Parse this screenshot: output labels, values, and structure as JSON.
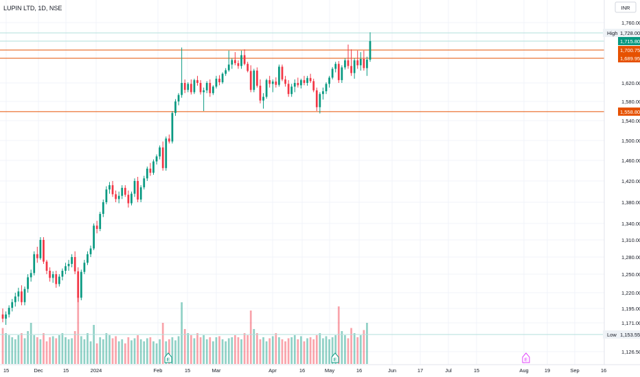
{
  "header": {
    "title": "LUPIN LTD, 1D, NSE"
  },
  "currency_button": {
    "label": "INR"
  },
  "chart_data": {
    "type": "candlestick",
    "title": "LUPIN LTD, 1D, NSE",
    "currency": "INR",
    "y_axis": {
      "ticks": [
        "1,760.00",
        "1,620.00",
        "1,580.00",
        "1,540.00",
        "1,500.00",
        "1,460.00",
        "1,420.00",
        "1,380.00",
        "1,340.00",
        "1,310.00",
        "1,280.00",
        "1,250.00",
        "1,220.00",
        "1,195.00",
        "1,171.00",
        "1,126.50"
      ],
      "tick_values": [
        1760,
        1620,
        1580,
        1540,
        1500,
        1460,
        1420,
        1380,
        1340,
        1310,
        1280,
        1250,
        1220,
        1195,
        1171,
        1126.5
      ]
    },
    "x_axis": {
      "ticks": [
        "15",
        "Dec",
        "15",
        "2024",
        "Feb",
        "15",
        "Mar",
        "Apr",
        "16",
        "May",
        "16",
        "Jun",
        "17",
        "Jul",
        "15",
        "Aug",
        "19",
        "Sep",
        "16"
      ]
    },
    "price_labels": [
      {
        "name": "High",
        "value": "1,728.00",
        "kind": "high"
      },
      {
        "value": "1,715.80",
        "kind": "last"
      },
      {
        "value": "1,700.75",
        "kind": "level"
      },
      {
        "value": "1,689.95",
        "kind": "level"
      },
      {
        "value": "1,558.80",
        "kind": "level"
      },
      {
        "name": "Low",
        "value": "1,153.55",
        "kind": "low"
      }
    ],
    "horizontal_levels": [
      1700.75,
      1689.95,
      1558.8
    ],
    "high": 1728.0,
    "low": 1153.55,
    "last": 1715.8,
    "earnings_markers": [
      "E",
      "E",
      "E"
    ],
    "candles": [
      [
        1185,
        1195,
        1172,
        1178
      ],
      [
        1178,
        1190,
        1168,
        1185
      ],
      [
        1185,
        1200,
        1180,
        1196
      ],
      [
        1196,
        1210,
        1190,
        1205
      ],
      [
        1205,
        1220,
        1198,
        1214
      ],
      [
        1214,
        1228,
        1206,
        1222
      ],
      [
        1222,
        1232,
        1200,
        1205
      ],
      [
        1205,
        1230,
        1200,
        1226
      ],
      [
        1226,
        1250,
        1220,
        1245
      ],
      [
        1245,
        1258,
        1238,
        1252
      ],
      [
        1252,
        1290,
        1248,
        1285
      ],
      [
        1285,
        1298,
        1270,
        1278
      ],
      [
        1278,
        1315,
        1275,
        1310
      ],
      [
        1310,
        1315,
        1268,
        1272
      ],
      [
        1272,
        1275,
        1250,
        1256
      ],
      [
        1256,
        1262,
        1238,
        1244
      ],
      [
        1244,
        1255,
        1236,
        1250
      ],
      [
        1250,
        1256,
        1228,
        1234
      ],
      [
        1234,
        1250,
        1230,
        1246
      ],
      [
        1246,
        1260,
        1240,
        1256
      ],
      [
        1256,
        1270,
        1250,
        1264
      ],
      [
        1264,
        1275,
        1256,
        1268
      ],
      [
        1268,
        1285,
        1262,
        1280
      ],
      [
        1280,
        1290,
        1250,
        1255
      ],
      [
        1255,
        1262,
        1205,
        1212
      ],
      [
        1212,
        1258,
        1208,
        1254
      ],
      [
        1254,
        1275,
        1250,
        1270
      ],
      [
        1270,
        1290,
        1266,
        1285
      ],
      [
        1285,
        1300,
        1280,
        1295
      ],
      [
        1295,
        1340,
        1292,
        1336
      ],
      [
        1336,
        1345,
        1322,
        1330
      ],
      [
        1330,
        1362,
        1326,
        1358
      ],
      [
        1358,
        1385,
        1352,
        1380
      ],
      [
        1380,
        1410,
        1376,
        1404
      ],
      [
        1404,
        1418,
        1396,
        1412
      ],
      [
        1412,
        1420,
        1390,
        1395
      ],
      [
        1395,
        1402,
        1380,
        1386
      ],
      [
        1386,
        1400,
        1378,
        1392
      ],
      [
        1392,
        1412,
        1386,
        1407
      ],
      [
        1407,
        1412,
        1390,
        1394
      ],
      [
        1394,
        1402,
        1370,
        1378
      ],
      [
        1378,
        1400,
        1374,
        1396
      ],
      [
        1396,
        1425,
        1390,
        1420
      ],
      [
        1420,
        1428,
        1380,
        1385
      ],
      [
        1385,
        1412,
        1380,
        1408
      ],
      [
        1408,
        1430,
        1404,
        1425
      ],
      [
        1425,
        1448,
        1420,
        1444
      ],
      [
        1444,
        1455,
        1430,
        1436
      ],
      [
        1436,
        1462,
        1432,
        1458
      ],
      [
        1458,
        1472,
        1452,
        1468
      ],
      [
        1468,
        1490,
        1462,
        1486
      ],
      [
        1486,
        1498,
        1440,
        1445
      ],
      [
        1445,
        1508,
        1440,
        1504
      ],
      [
        1504,
        1512,
        1494,
        1498
      ],
      [
        1498,
        1560,
        1494,
        1556
      ],
      [
        1556,
        1585,
        1550,
        1580
      ],
      [
        1580,
        1598,
        1572,
        1594
      ],
      [
        1594,
        1705,
        1588,
        1620
      ],
      [
        1620,
        1630,
        1598,
        1605
      ],
      [
        1605,
        1622,
        1600,
        1618
      ],
      [
        1618,
        1630,
        1595,
        1600
      ],
      [
        1600,
        1632,
        1596,
        1628
      ],
      [
        1628,
        1640,
        1614,
        1620
      ],
      [
        1620,
        1628,
        1595,
        1600
      ],
      [
        1600,
        1610,
        1560,
        1604
      ],
      [
        1604,
        1625,
        1598,
        1620
      ],
      [
        1620,
        1630,
        1590,
        1598
      ],
      [
        1598,
        1615,
        1594,
        1612
      ],
      [
        1612,
        1640,
        1608,
        1632
      ],
      [
        1632,
        1642,
        1615,
        1622
      ],
      [
        1622,
        1650,
        1618,
        1646
      ],
      [
        1646,
        1662,
        1640,
        1656
      ],
      [
        1656,
        1700,
        1652,
        1672
      ],
      [
        1672,
        1690,
        1660,
        1685
      ],
      [
        1685,
        1698,
        1670,
        1676
      ],
      [
        1676,
        1684,
        1660,
        1668
      ],
      [
        1668,
        1700,
        1660,
        1694
      ],
      [
        1694,
        1702,
        1670,
        1674
      ],
      [
        1674,
        1680,
        1650,
        1654
      ],
      [
        1654,
        1670,
        1600,
        1605
      ],
      [
        1605,
        1660,
        1600,
        1655
      ],
      [
        1655,
        1664,
        1610,
        1614
      ],
      [
        1614,
        1630,
        1576,
        1582
      ],
      [
        1582,
        1598,
        1565,
        1590
      ],
      [
        1590,
        1632,
        1586,
        1628
      ],
      [
        1628,
        1640,
        1610,
        1618
      ],
      [
        1618,
        1630,
        1600,
        1624
      ],
      [
        1624,
        1636,
        1610,
        1616
      ],
      [
        1616,
        1672,
        1612,
        1666
      ],
      [
        1666,
        1672,
        1625,
        1630
      ],
      [
        1630,
        1640,
        1612,
        1618
      ],
      [
        1618,
        1628,
        1590,
        1596
      ],
      [
        1596,
        1618,
        1590,
        1612
      ],
      [
        1612,
        1630,
        1600,
        1620
      ],
      [
        1620,
        1635,
        1610,
        1615
      ],
      [
        1615,
        1632,
        1608,
        1628
      ],
      [
        1628,
        1640,
        1615,
        1620
      ],
      [
        1620,
        1640,
        1614,
        1634
      ],
      [
        1634,
        1646,
        1620,
        1625
      ],
      [
        1625,
        1632,
        1600,
        1604
      ],
      [
        1604,
        1610,
        1560,
        1568
      ],
      [
        1568,
        1600,
        1555,
        1596
      ],
      [
        1596,
        1610,
        1584,
        1602
      ],
      [
        1602,
        1622,
        1596,
        1618
      ],
      [
        1618,
        1640,
        1610,
        1635
      ],
      [
        1635,
        1665,
        1630,
        1660
      ],
      [
        1660,
        1680,
        1650,
        1674
      ],
      [
        1674,
        1682,
        1620,
        1628
      ],
      [
        1628,
        1670,
        1620,
        1664
      ],
      [
        1664,
        1690,
        1658,
        1684
      ],
      [
        1684,
        1710,
        1660,
        1668
      ],
      [
        1668,
        1702,
        1640,
        1648
      ],
      [
        1648,
        1690,
        1632,
        1684
      ],
      [
        1684,
        1700,
        1660,
        1670
      ],
      [
        1670,
        1698,
        1655,
        1688
      ],
      [
        1688,
        1700,
        1655,
        1662
      ],
      [
        1662,
        1692,
        1640,
        1686
      ],
      [
        1686,
        1730,
        1680,
        1715.8
      ]
    ],
    "volumes": [
      0.35,
      0.3,
      0.28,
      0.26,
      0.24,
      0.28,
      0.3,
      0.25,
      0.32,
      0.4,
      0.28,
      0.26,
      0.24,
      0.3,
      0.22,
      0.26,
      0.27,
      0.25,
      0.28,
      0.3,
      0.26,
      0.24,
      0.25,
      0.32,
      0.66,
      0.27,
      0.24,
      0.3,
      0.22,
      0.38,
      0.2,
      0.26,
      0.24,
      0.3,
      0.28,
      0.25,
      0.27,
      0.22,
      0.24,
      0.2,
      0.26,
      0.23,
      0.25,
      0.28,
      0.24,
      0.22,
      0.25,
      0.26,
      0.22,
      0.2,
      0.24,
      0.4,
      0.22,
      0.24,
      0.26,
      0.23,
      0.27,
      0.6,
      0.34,
      0.3,
      0.28,
      0.25,
      0.3,
      0.26,
      0.28,
      0.24,
      0.26,
      0.22,
      0.26,
      0.27,
      0.24,
      0.22,
      0.25,
      0.26,
      0.28,
      0.26,
      0.24,
      0.3,
      0.28,
      0.52,
      0.34,
      0.3,
      0.24,
      0.26,
      0.22,
      0.25,
      0.27,
      0.3,
      0.26,
      0.24,
      0.22,
      0.25,
      0.26,
      0.28,
      0.24,
      0.27,
      0.22,
      0.25,
      0.26,
      0.24,
      0.28,
      0.3,
      0.25,
      0.27,
      0.24,
      0.26,
      0.28,
      0.56,
      0.32,
      0.28,
      0.25,
      0.35,
      0.3,
      0.26,
      0.28,
      0.33,
      0.4
    ]
  }
}
